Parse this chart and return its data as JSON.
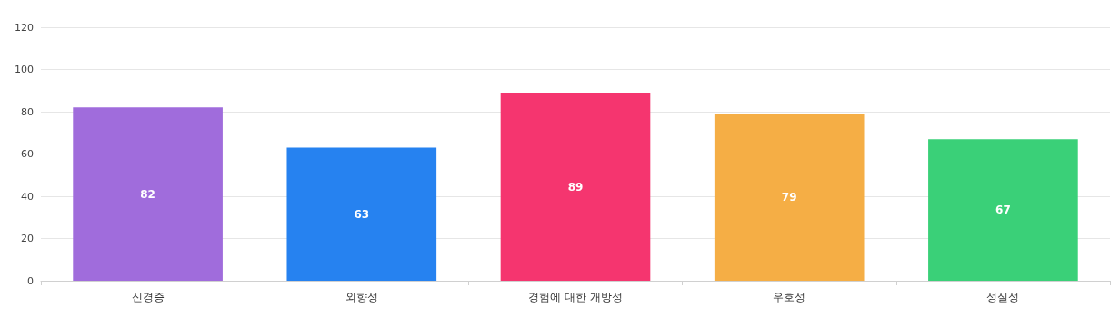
{
  "chart_data": {
    "type": "bar",
    "categories": [
      "신경증",
      "외향성",
      "경험에 대한 개방성",
      "우호성",
      "성실성"
    ],
    "values": [
      82,
      63,
      89,
      79,
      67
    ],
    "colors": [
      "#a06cdc",
      "#2682f0",
      "#f5356f",
      "#f5ae45",
      "#3ad078"
    ],
    "ylim": [
      0,
      120
    ],
    "yticks": [
      0,
      20,
      40,
      60,
      80,
      100,
      120
    ],
    "grid": "y",
    "data_labels": true
  }
}
